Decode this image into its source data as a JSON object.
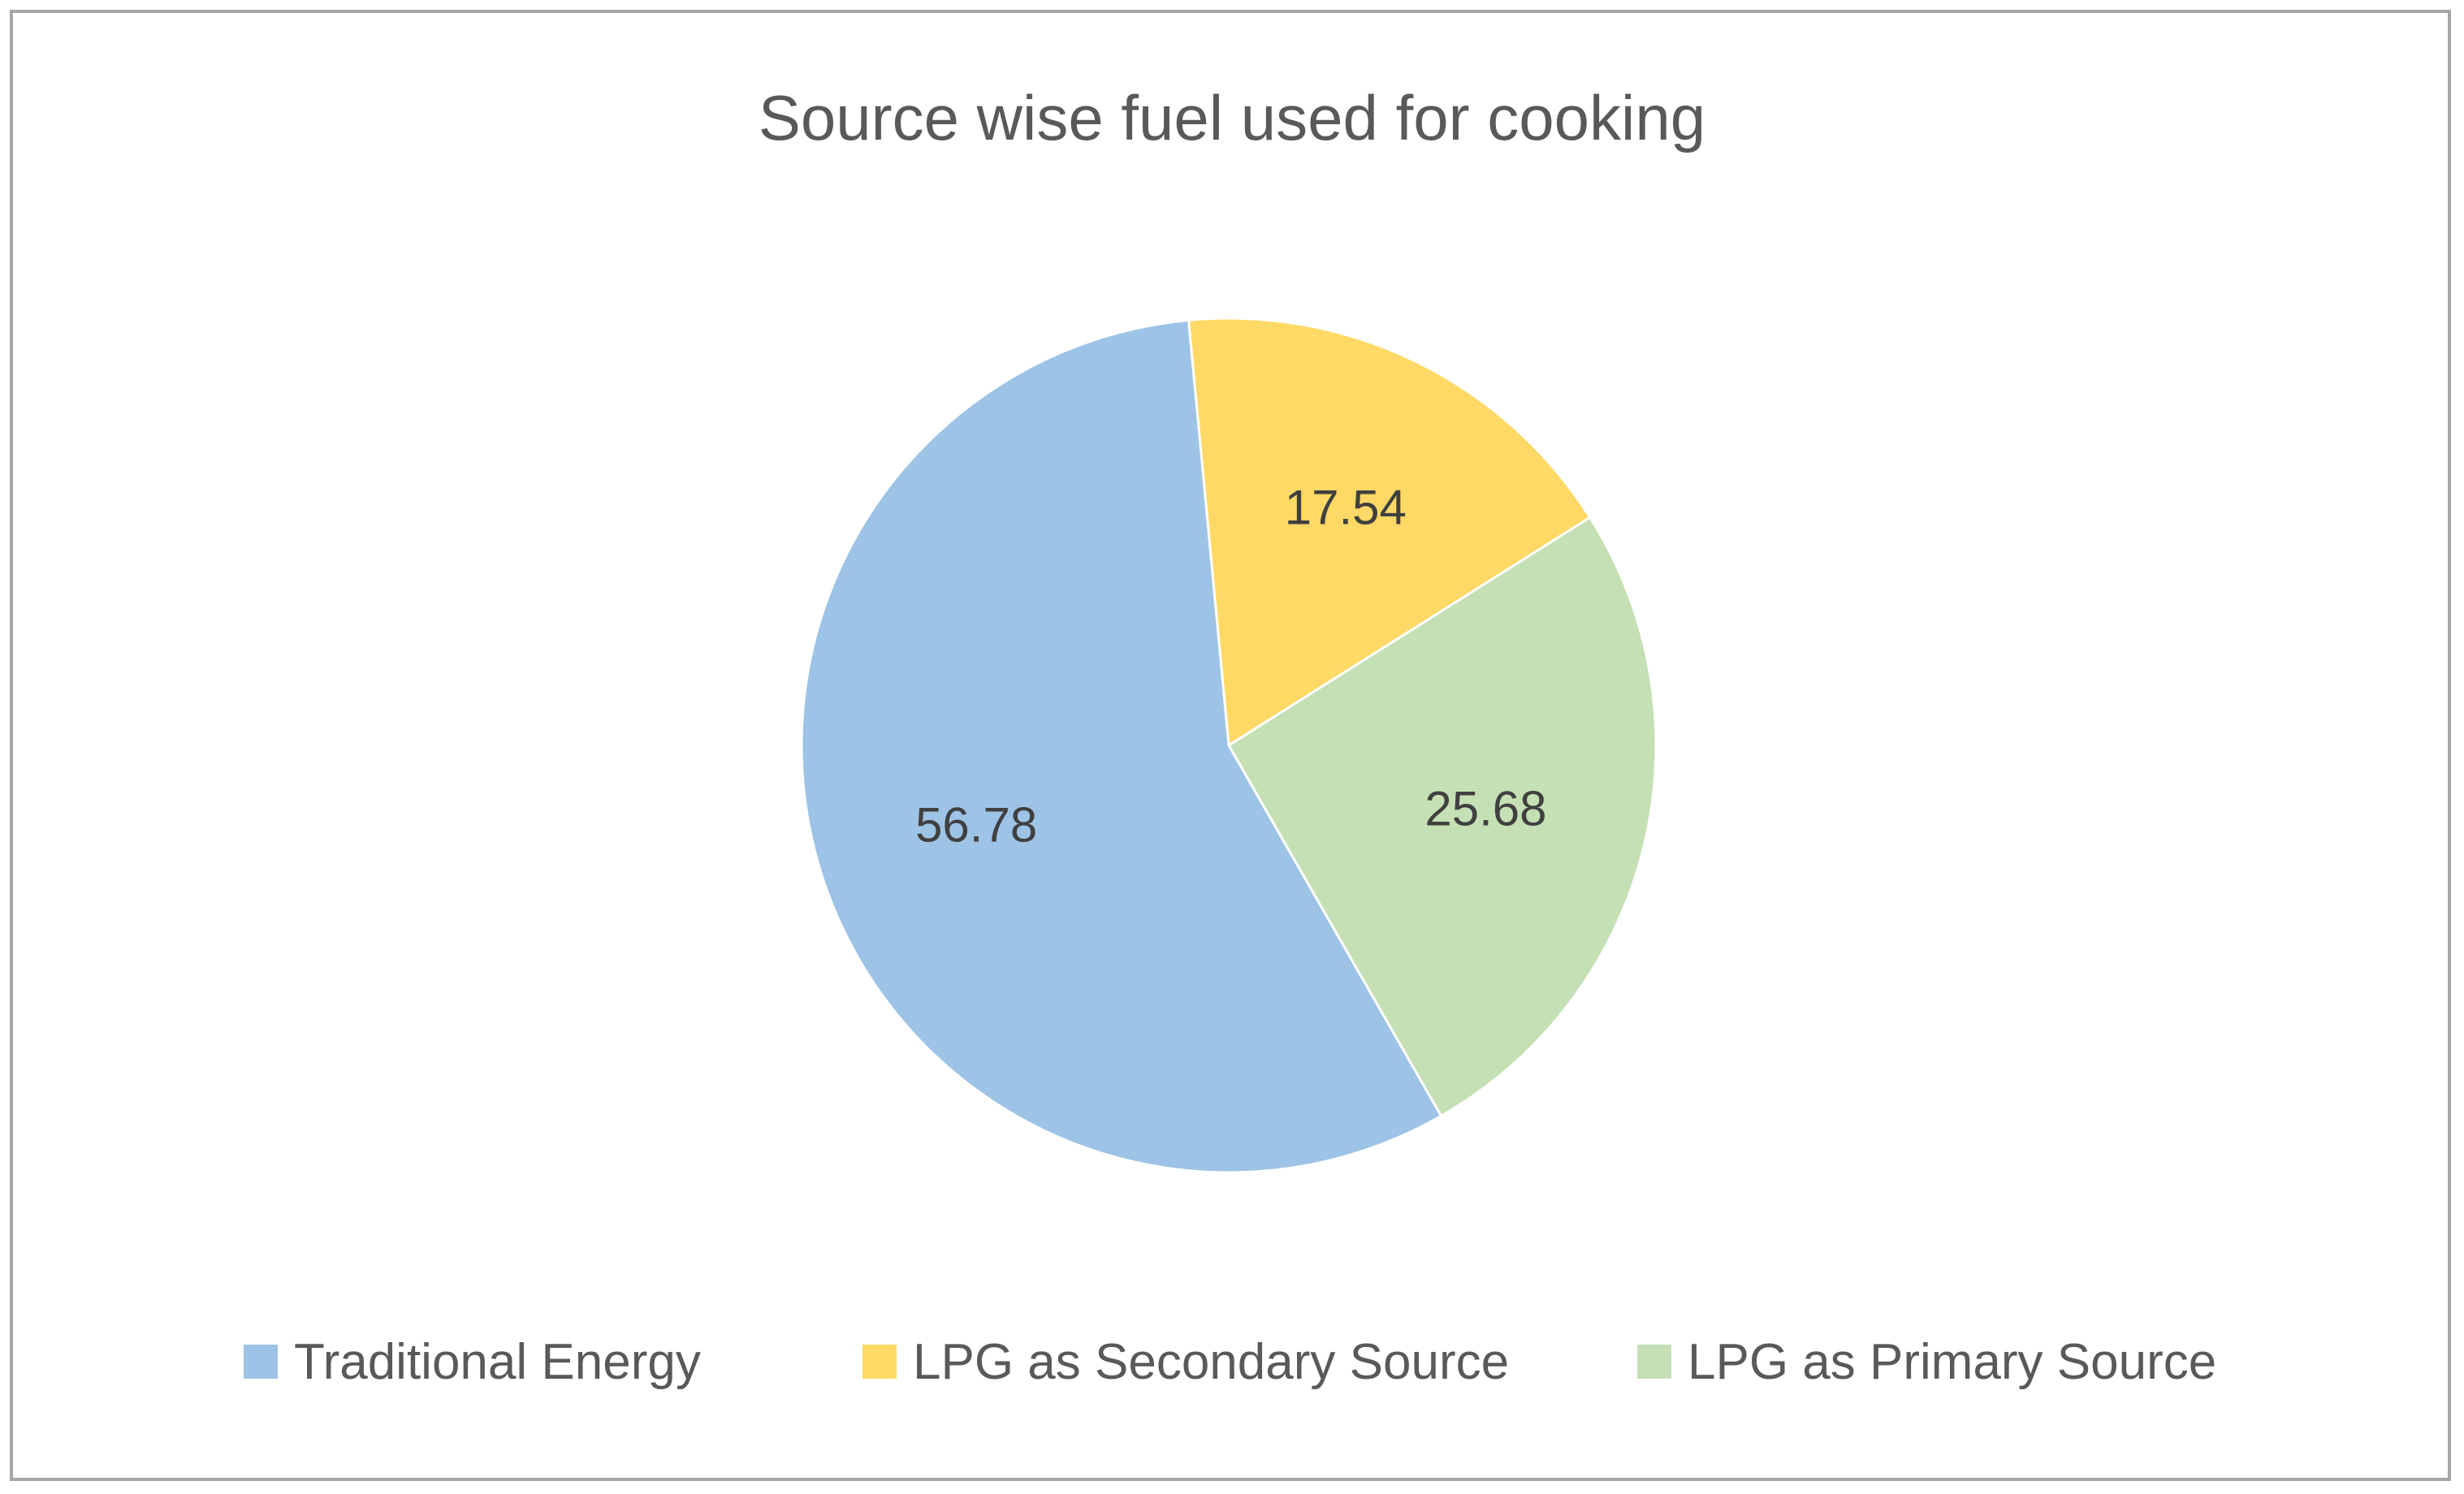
{
  "chart_data": {
    "type": "pie",
    "title": "Source wise fuel used for cooking",
    "categories": [
      "Traditional Energy",
      "LPG as Secondary Source",
      "LPG as Primary Source"
    ],
    "values": [
      56.78,
      17.54,
      25.68
    ],
    "colors": [
      "#9dc3e6",
      "#ffd966",
      "#c5e0b4"
    ],
    "data_labels": [
      "56.78",
      "17.54",
      "25.68"
    ],
    "legend_position": "bottom",
    "start_direction": "clockwise from top"
  }
}
